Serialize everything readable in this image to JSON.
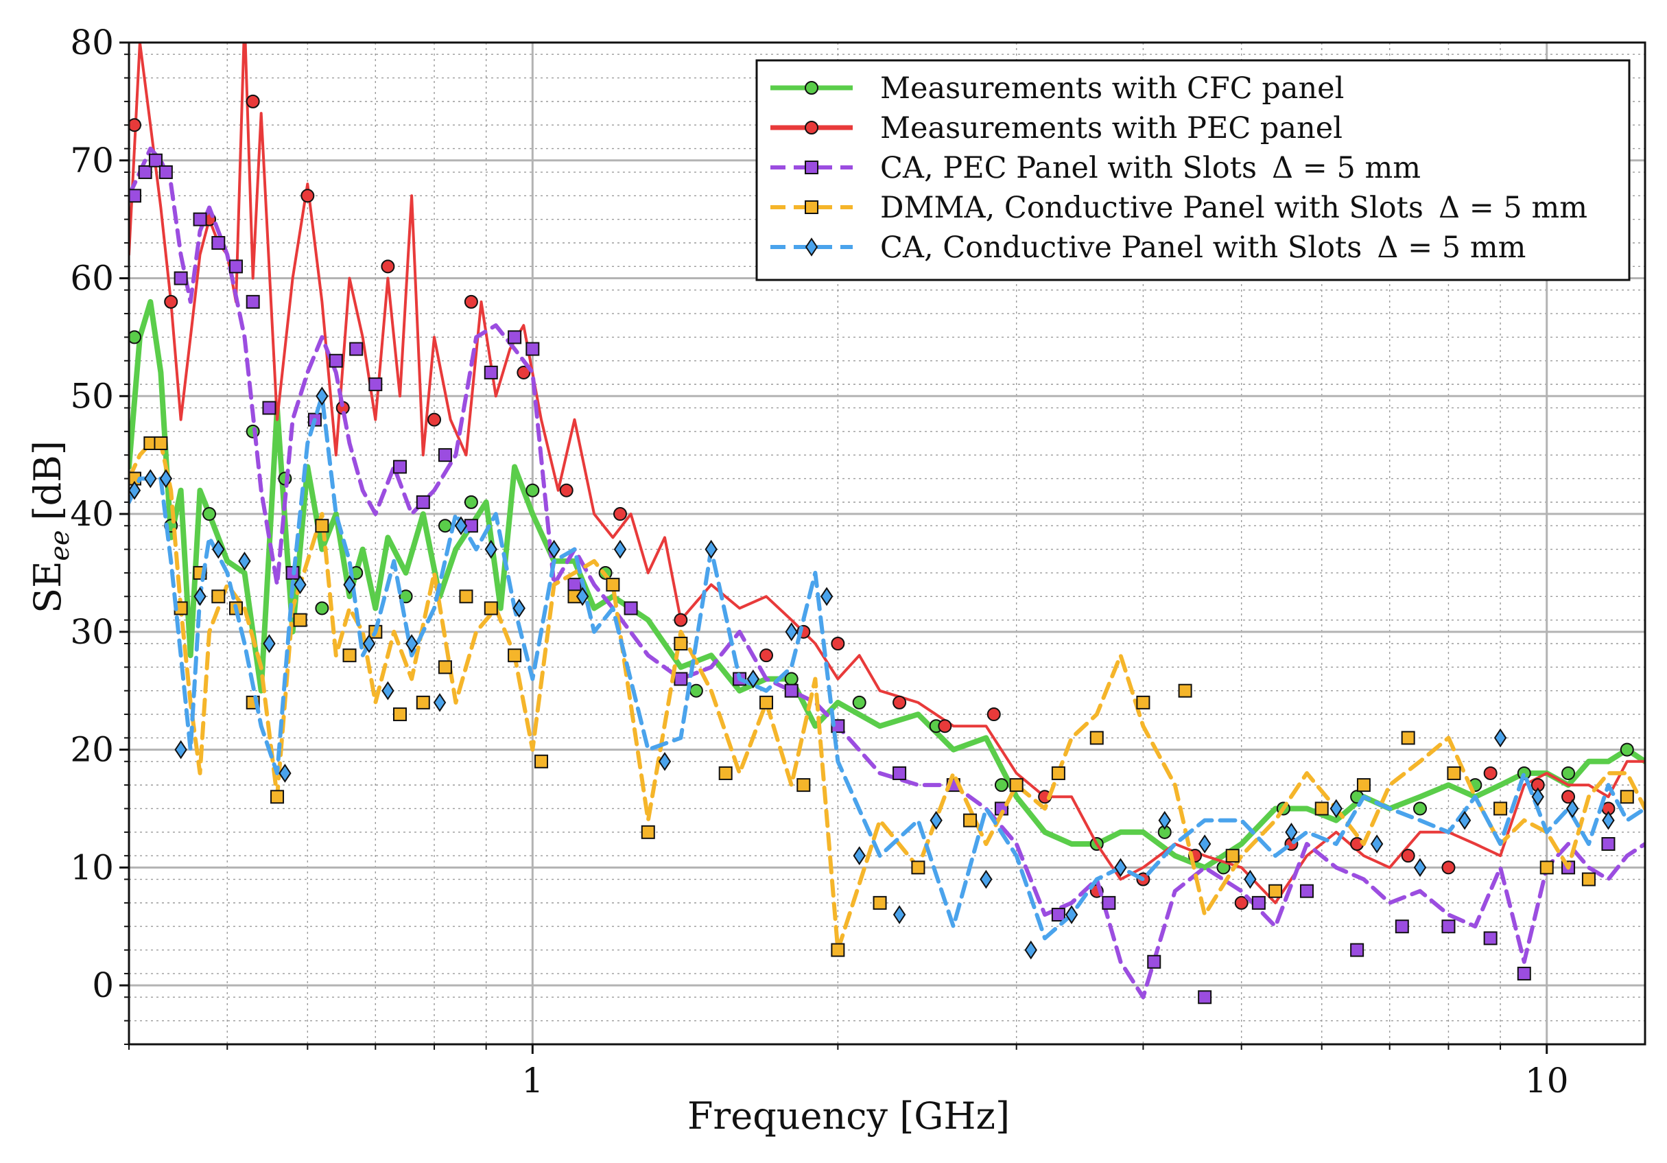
{
  "chart_data": {
    "type": "line",
    "xscale": "log",
    "xlabel": "Frequency [GHz]",
    "ylabel": "SE",
    "ylabel_subscript": "ee",
    "ylabel_unit": "[dB]",
    "xlim": [
      0.4,
      12.5
    ],
    "ylim": [
      -5,
      80
    ],
    "yticks": [
      0,
      10,
      20,
      30,
      40,
      50,
      60,
      70,
      80
    ],
    "xticks": [
      1,
      10
    ],
    "xtick_labels": [
      "1",
      "10"
    ],
    "grid": true,
    "legend_position": "top-right",
    "series": [
      {
        "name": "Measurements with CFC panel",
        "color": "#5acd4a",
        "style": "solid",
        "marker": "circle",
        "x": [
          0.4,
          0.41,
          0.42,
          0.43,
          0.44,
          0.45,
          0.46,
          0.47,
          0.48,
          0.5,
          0.52,
          0.54,
          0.56,
          0.58,
          0.6,
          0.62,
          0.64,
          0.66,
          0.68,
          0.7,
          0.72,
          0.75,
          0.78,
          0.81,
          0.84,
          0.87,
          0.9,
          0.93,
          0.96,
          1.0,
          1.05,
          1.1,
          1.15,
          1.2,
          1.3,
          1.4,
          1.5,
          1.6,
          1.7,
          1.8,
          1.9,
          2.0,
          2.2,
          2.4,
          2.6,
          2.8,
          3.0,
          3.2,
          3.4,
          3.6,
          3.8,
          4.0,
          4.3,
          4.6,
          5.0,
          5.4,
          5.8,
          6.2,
          6.6,
          7.0,
          7.5,
          8.0,
          8.5,
          9.0,
          9.5,
          10.0,
          10.5,
          11.0,
          11.5,
          12.0,
          12.5
        ],
        "y": [
          44,
          55,
          58,
          52,
          38,
          42,
          28,
          42,
          40,
          36,
          35,
          25,
          49,
          30,
          44,
          37,
          40,
          33,
          37,
          32,
          38,
          35,
          40,
          33,
          37,
          39,
          41,
          32,
          44,
          40,
          36,
          36,
          32,
          33,
          31,
          27,
          28,
          25,
          26,
          26,
          22,
          24,
          22,
          23,
          20,
          21,
          16,
          13,
          12,
          12,
          13,
          13,
          11,
          10,
          12,
          15,
          15,
          14,
          16,
          15,
          16,
          17,
          16,
          17,
          18,
          18,
          17,
          19,
          19,
          20,
          19
        ],
        "marker_x": [
          0.405,
          0.44,
          0.48,
          0.53,
          0.57,
          0.62,
          0.67,
          0.75,
          0.82,
          0.87,
          1.0,
          1.18,
          1.45,
          1.8,
          2.1,
          2.5,
          2.9,
          3.6,
          4.2,
          4.8,
          5.5,
          6.5,
          7.5,
          8.5,
          9.5,
          10.5,
          12.0
        ],
        "marker_y": [
          55,
          39,
          40,
          47,
          43,
          32,
          35,
          33,
          39,
          41,
          42,
          35,
          25,
          26,
          24,
          22,
          17,
          12,
          13,
          10,
          15,
          16,
          15,
          17,
          18,
          18,
          20
        ]
      },
      {
        "name": "Measurements with PEC panel",
        "color": "#e83a3a",
        "style": "solid",
        "marker": "circle",
        "x": [
          0.4,
          0.41,
          0.42,
          0.43,
          0.44,
          0.45,
          0.46,
          0.47,
          0.48,
          0.49,
          0.5,
          0.51,
          0.52,
          0.53,
          0.54,
          0.56,
          0.58,
          0.6,
          0.62,
          0.64,
          0.66,
          0.68,
          0.7,
          0.72,
          0.74,
          0.76,
          0.78,
          0.8,
          0.83,
          0.86,
          0.89,
          0.92,
          0.95,
          0.98,
          1.02,
          1.06,
          1.1,
          1.15,
          1.2,
          1.25,
          1.3,
          1.35,
          1.4,
          1.5,
          1.6,
          1.7,
          1.8,
          1.9,
          2.0,
          2.1,
          2.2,
          2.4,
          2.6,
          2.8,
          3.0,
          3.2,
          3.4,
          3.6,
          3.8,
          4.0,
          4.3,
          4.6,
          5.0,
          5.4,
          5.8,
          6.2,
          6.6,
          7.0,
          7.5,
          8.0,
          8.5,
          9.0,
          9.5,
          10.0,
          10.5,
          11.0,
          11.5,
          12.0,
          12.5
        ],
        "y": [
          62,
          80,
          73,
          66,
          58,
          48,
          55,
          62,
          65,
          63,
          62,
          58,
          82,
          60,
          74,
          48,
          60,
          68,
          58,
          45,
          60,
          55,
          48,
          60,
          50,
          67,
          45,
          55,
          48,
          45,
          58,
          50,
          54,
          56,
          48,
          42,
          48,
          40,
          38,
          40,
          35,
          38,
          31,
          34,
          32,
          33,
          31,
          29,
          26,
          28,
          25,
          24,
          22,
          22,
          18,
          16,
          16,
          12,
          9,
          10,
          12,
          11,
          10,
          7,
          11,
          13,
          11,
          10,
          13,
          13,
          12,
          11,
          17,
          18,
          17,
          17,
          16,
          19,
          19
        ],
        "marker_x": [
          0.405,
          0.44,
          0.48,
          0.53,
          0.6,
          0.65,
          0.72,
          0.8,
          0.87,
          0.98,
          1.08,
          1.22,
          1.4,
          1.7,
          1.85,
          2.0,
          2.3,
          2.55,
          2.85,
          3.2,
          3.6,
          4.0,
          4.5,
          5.0,
          5.6,
          6.5,
          7.3,
          8.0,
          8.8,
          9.8,
          10.5,
          11.5
        ],
        "marker_y": [
          73,
          58,
          65,
          75,
          67,
          49,
          61,
          48,
          58,
          52,
          42,
          40,
          31,
          28,
          30,
          29,
          24,
          22,
          23,
          16,
          8,
          9,
          11,
          7,
          12,
          12,
          11,
          10,
          18,
          17,
          16,
          15
        ]
      },
      {
        "name": "CA, PEC Panel with Slots",
        "name_suffix": "Δ = 5 mm",
        "color": "#9b4de0",
        "style": "dashed",
        "marker": "square",
        "x": [
          0.4,
          0.41,
          0.42,
          0.43,
          0.44,
          0.45,
          0.46,
          0.47,
          0.48,
          0.5,
          0.52,
          0.54,
          0.56,
          0.58,
          0.6,
          0.62,
          0.64,
          0.66,
          0.68,
          0.7,
          0.73,
          0.76,
          0.8,
          0.84,
          0.88,
          0.92,
          0.96,
          1.0,
          1.05,
          1.1,
          1.15,
          1.2,
          1.3,
          1.4,
          1.5,
          1.6,
          1.7,
          1.8,
          1.9,
          2.0,
          2.2,
          2.4,
          2.6,
          2.8,
          3.0,
          3.2,
          3.4,
          3.6,
          3.8,
          4.0,
          4.3,
          4.6,
          5.0,
          5.4,
          5.8,
          6.2,
          6.6,
          7.0,
          7.5,
          8.0,
          8.5,
          9.0,
          9.5,
          10.0,
          10.5,
          11.0,
          11.5,
          12.0,
          12.5
        ],
        "y": [
          67,
          69,
          71,
          70,
          68,
          62,
          58,
          64,
          66,
          62,
          55,
          42,
          34,
          48,
          52,
          55,
          52,
          46,
          42,
          40,
          44,
          40,
          42,
          45,
          55,
          56,
          54,
          52,
          34,
          37,
          34,
          32,
          28,
          26,
          27,
          30,
          26,
          25,
          24,
          22,
          18,
          17,
          17,
          15,
          12,
          6,
          7,
          9,
          2,
          -1,
          8,
          10,
          8,
          5,
          12,
          10,
          9,
          7,
          8,
          6,
          5,
          10,
          2,
          10,
          12,
          10,
          9,
          11,
          12
        ],
        "marker_x": [
          0.405,
          0.415,
          0.425,
          0.435,
          0.45,
          0.47,
          0.49,
          0.51,
          0.53,
          0.55,
          0.58,
          0.61,
          0.64,
          0.67,
          0.7,
          0.74,
          0.78,
          0.82,
          0.87,
          0.91,
          0.96,
          1.0,
          1.1,
          1.25,
          1.4,
          1.6,
          1.8,
          2.0,
          2.3,
          2.6,
          2.9,
          3.3,
          3.7,
          4.1,
          4.6,
          5.2,
          5.8,
          6.5,
          7.2,
          8.0,
          8.8,
          9.5,
          10.5,
          11.5
        ],
        "marker_y": [
          67,
          69,
          70,
          69,
          60,
          65,
          63,
          61,
          58,
          49,
          35,
          48,
          53,
          54,
          51,
          44,
          41,
          45,
          39,
          52,
          55,
          54,
          34,
          32,
          26,
          26,
          25,
          22,
          18,
          17,
          15,
          6,
          7,
          2,
          -1,
          7,
          8,
          3,
          5,
          5,
          4,
          1,
          10,
          12
        ]
      },
      {
        "name": "DMMA, Conductive Panel with Slots",
        "name_suffix": "Δ = 5 mm",
        "color": "#f5b52a",
        "style": "dashed",
        "marker": "square",
        "x": [
          0.4,
          0.41,
          0.42,
          0.43,
          0.44,
          0.45,
          0.46,
          0.47,
          0.48,
          0.5,
          0.52,
          0.54,
          0.56,
          0.58,
          0.6,
          0.62,
          0.64,
          0.66,
          0.68,
          0.7,
          0.73,
          0.76,
          0.8,
          0.84,
          0.88,
          0.92,
          0.96,
          1.0,
          1.05,
          1.1,
          1.15,
          1.2,
          1.3,
          1.4,
          1.5,
          1.6,
          1.7,
          1.8,
          1.9,
          2.0,
          2.2,
          2.4,
          2.6,
          2.8,
          3.0,
          3.2,
          3.4,
          3.6,
          3.8,
          4.0,
          4.3,
          4.6,
          5.0,
          5.4,
          5.8,
          6.2,
          6.6,
          7.0,
          7.5,
          8.0,
          8.5,
          9.0,
          9.5,
          10.0,
          10.5,
          11.0,
          11.5,
          12.0,
          12.5
        ],
        "y": [
          43,
          45,
          46,
          46,
          42,
          32,
          24,
          18,
          30,
          34,
          32,
          27,
          16,
          32,
          36,
          40,
          28,
          32,
          30,
          24,
          30,
          26,
          35,
          24,
          30,
          32,
          28,
          20,
          34,
          35,
          36,
          34,
          14,
          30,
          25,
          18,
          24,
          17,
          26,
          3,
          14,
          10,
          18,
          12,
          17,
          15,
          21,
          23,
          28,
          22,
          17,
          6,
          11,
          14,
          18,
          15,
          12,
          17,
          19,
          21,
          16,
          12,
          14,
          13,
          10,
          16,
          18,
          18,
          15
        ],
        "marker_x": [
          0.405,
          0.42,
          0.43,
          0.45,
          0.47,
          0.49,
          0.51,
          0.53,
          0.56,
          0.59,
          0.62,
          0.66,
          0.7,
          0.74,
          0.78,
          0.82,
          0.86,
          0.91,
          0.96,
          1.02,
          1.1,
          1.2,
          1.3,
          1.4,
          1.55,
          1.7,
          1.85,
          2.0,
          2.2,
          2.4,
          2.7,
          3.0,
          3.3,
          3.6,
          4.0,
          4.4,
          4.9,
          5.4,
          6.0,
          6.6,
          7.3,
          8.1,
          9.0,
          10.0,
          11.0,
          12.0
        ],
        "marker_y": [
          43,
          46,
          46,
          32,
          35,
          33,
          32,
          24,
          16,
          31,
          39,
          28,
          30,
          23,
          24,
          27,
          33,
          32,
          28,
          19,
          33,
          34,
          13,
          29,
          18,
          24,
          17,
          3,
          7,
          10,
          14,
          17,
          18,
          21,
          24,
          25,
          11,
          8,
          15,
          17,
          21,
          18,
          15,
          10,
          9,
          16
        ]
      },
      {
        "name": "CA, Conductive Panel with Slots",
        "name_suffix": "Δ = 5 mm",
        "color": "#4aa3ec",
        "style": "dashed",
        "marker": "diamond",
        "x": [
          0.4,
          0.41,
          0.42,
          0.43,
          0.44,
          0.45,
          0.46,
          0.47,
          0.48,
          0.5,
          0.52,
          0.54,
          0.56,
          0.58,
          0.6,
          0.62,
          0.64,
          0.66,
          0.68,
          0.7,
          0.73,
          0.76,
          0.8,
          0.84,
          0.88,
          0.92,
          0.96,
          1.0,
          1.05,
          1.1,
          1.15,
          1.2,
          1.3,
          1.4,
          1.5,
          1.6,
          1.7,
          1.8,
          1.9,
          2.0,
          2.2,
          2.4,
          2.6,
          2.8,
          3.0,
          3.2,
          3.4,
          3.6,
          3.8,
          4.0,
          4.3,
          4.6,
          5.0,
          5.4,
          5.8,
          6.2,
          6.6,
          7.0,
          7.5,
          8.0,
          8.5,
          9.0,
          9.5,
          10.0,
          10.5,
          11.0,
          11.5,
          12.0,
          12.5
        ],
        "y": [
          41,
          43,
          43,
          43,
          36,
          28,
          20,
          33,
          38,
          35,
          29,
          22,
          18,
          34,
          46,
          50,
          40,
          36,
          28,
          30,
          36,
          28,
          32,
          40,
          37,
          40,
          32,
          26,
          36,
          37,
          30,
          32,
          20,
          21,
          37,
          26,
          25,
          27,
          35,
          19,
          11,
          14,
          5,
          15,
          11,
          4,
          6,
          9,
          10,
          9,
          12,
          14,
          14,
          11,
          13,
          12,
          16,
          15,
          14,
          13,
          16,
          12,
          18,
          13,
          15,
          12,
          17,
          14,
          15
        ],
        "marker_x": [
          0.405,
          0.42,
          0.435,
          0.45,
          0.47,
          0.49,
          0.52,
          0.55,
          0.57,
          0.59,
          0.62,
          0.66,
          0.69,
          0.72,
          0.76,
          0.81,
          0.85,
          0.91,
          0.97,
          1.05,
          1.12,
          1.22,
          1.35,
          1.5,
          1.65,
          1.8,
          1.95,
          2.1,
          2.3,
          2.5,
          2.8,
          3.1,
          3.4,
          3.8,
          4.2,
          4.6,
          5.1,
          5.6,
          6.2,
          6.8,
          7.5,
          8.3,
          9.0,
          9.8,
          10.6,
          11.5
        ],
        "marker_y": [
          42,
          43,
          43,
          20,
          33,
          37,
          36,
          29,
          18,
          34,
          50,
          34,
          29,
          25,
          29,
          24,
          39,
          37,
          32,
          37,
          33,
          37,
          19,
          37,
          26,
          30,
          33,
          11,
          6,
          14,
          9,
          3,
          6,
          10,
          14,
          12,
          9,
          13,
          15,
          12,
          10,
          14,
          21,
          16,
          15,
          14
        ]
      }
    ]
  }
}
